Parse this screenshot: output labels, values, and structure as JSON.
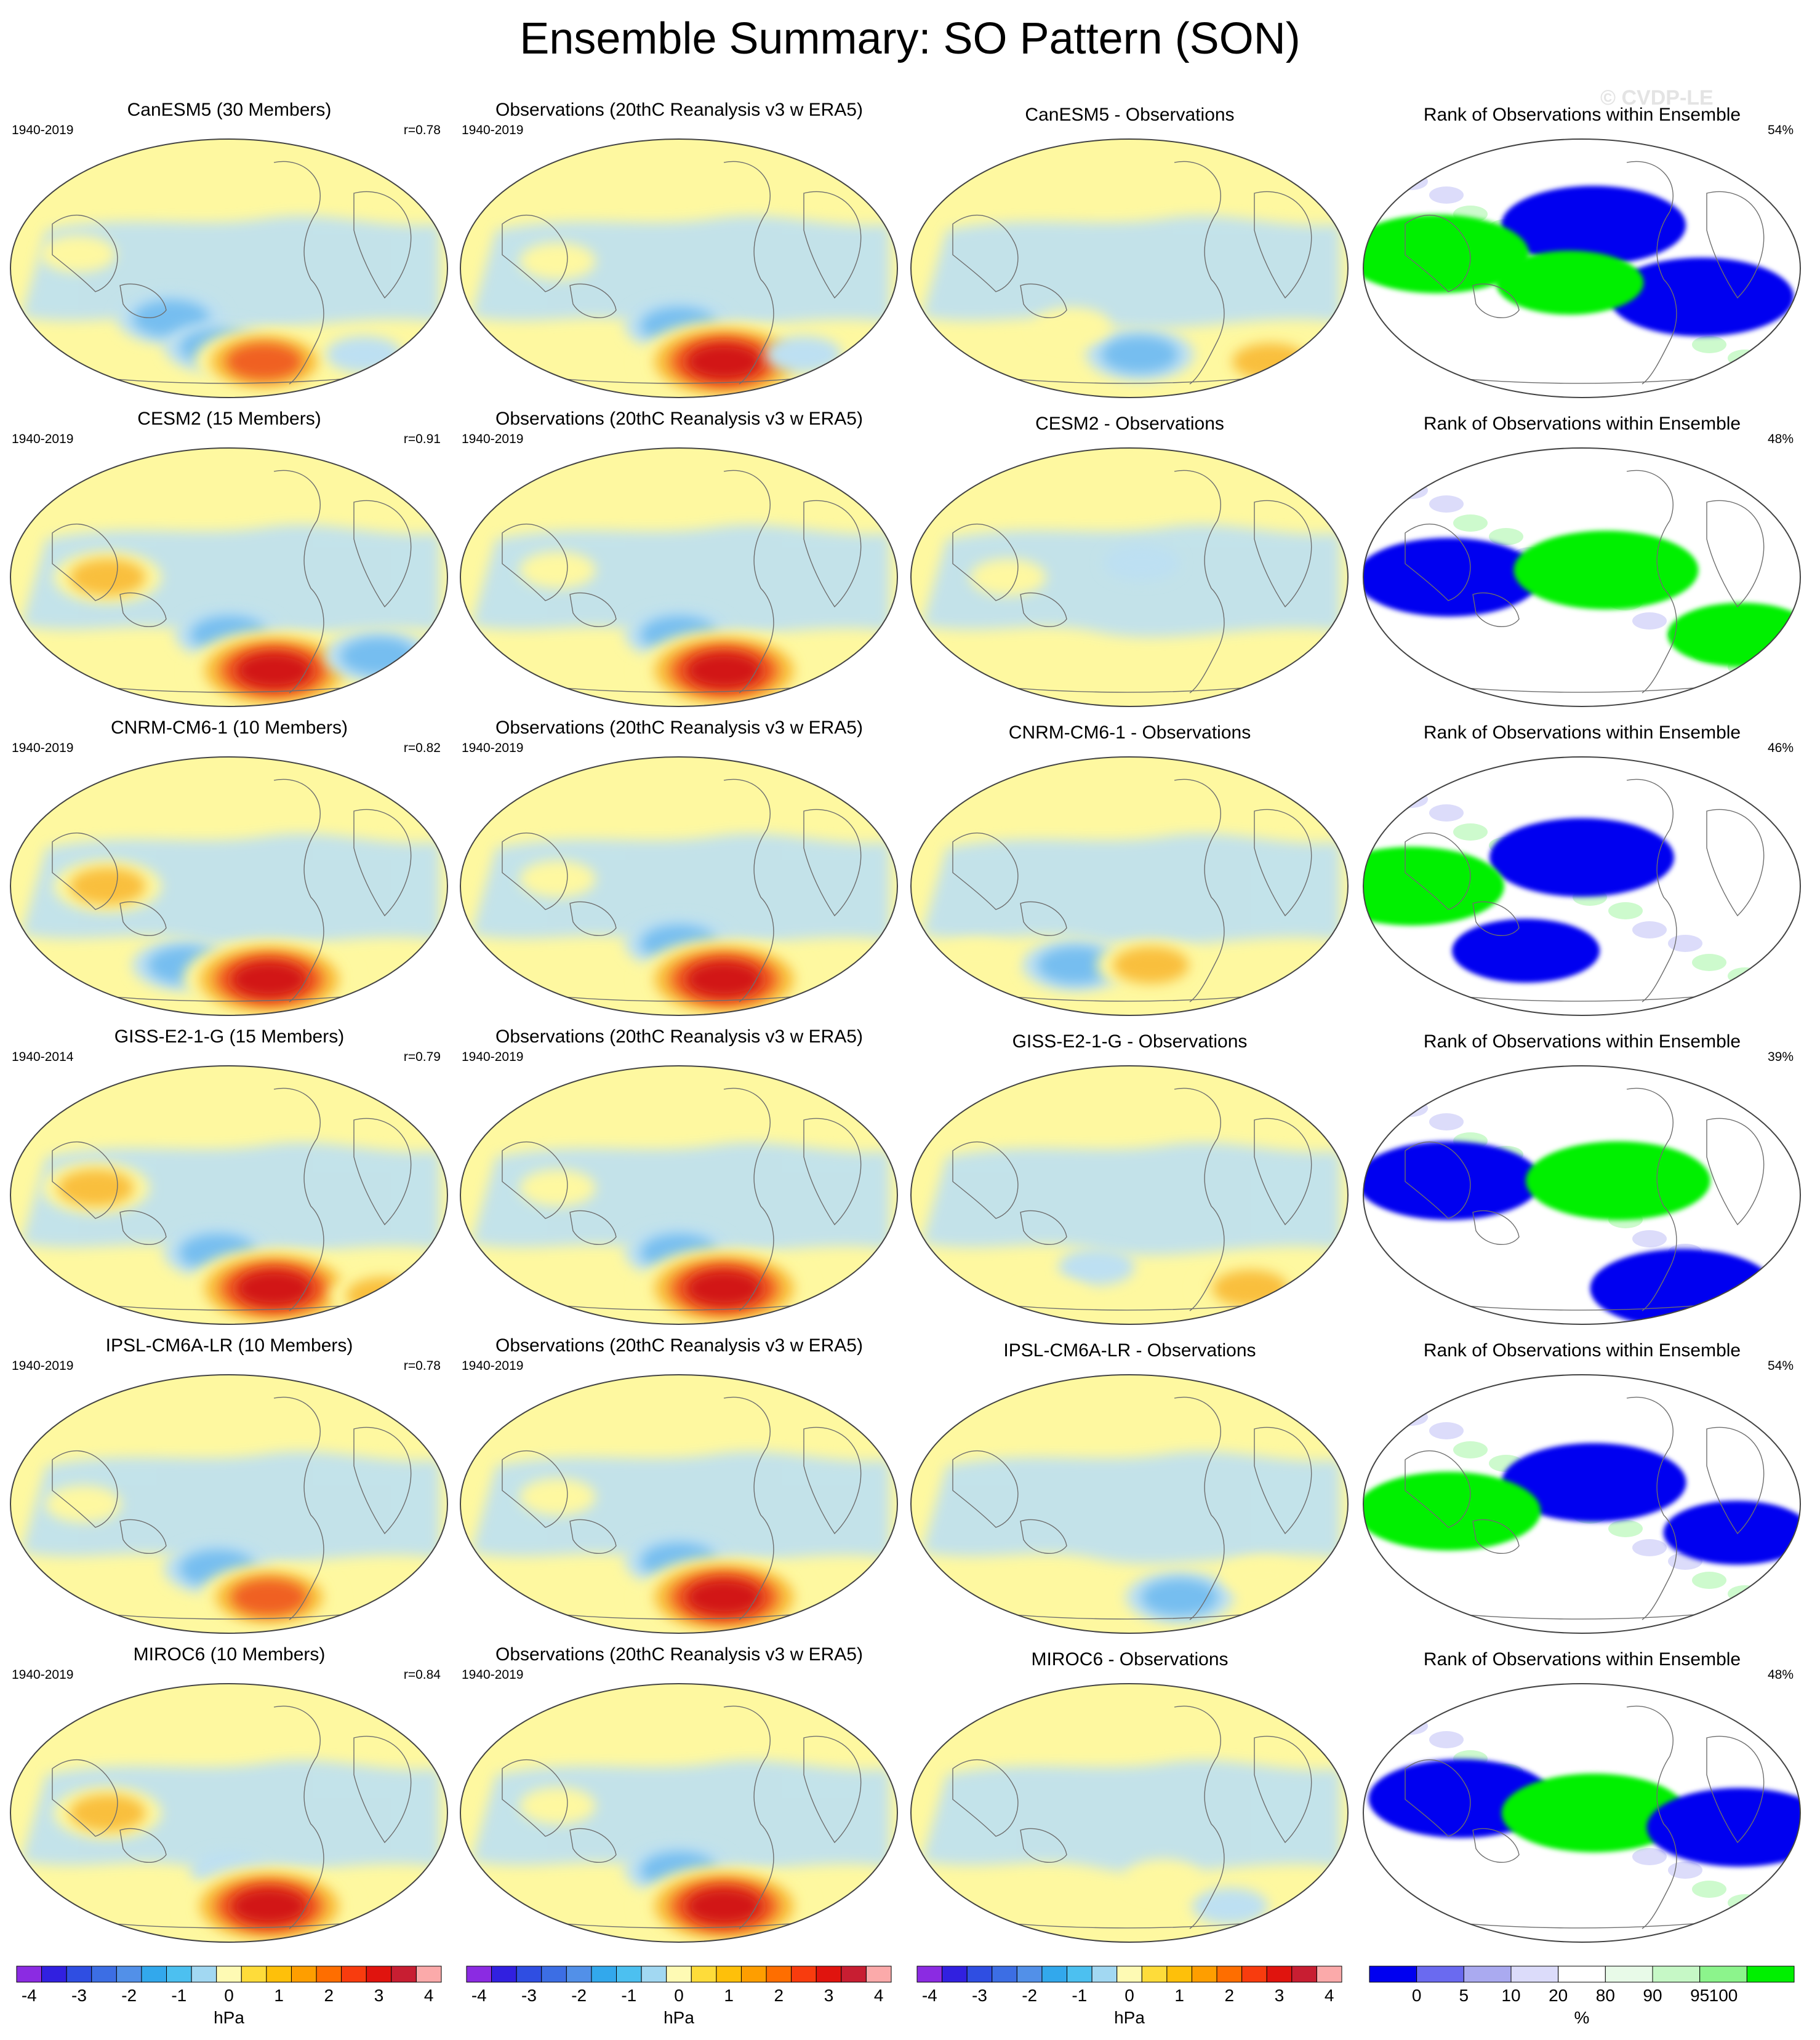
{
  "title": "Ensemble Summary: SO Pattern (SON)",
  "watermark": "© CVDP-LE",
  "colors": {
    "pos_weak": "#fef8a0",
    "pos_mid": "#f9bf3c",
    "pos_strong": "#f06020",
    "pos_max": "#d21414",
    "neg_weak": "#bde0f2",
    "neg_mid": "#76bef0",
    "neg_strong": "#2496e6",
    "rank_blue": "#0000f0",
    "rank_green": "#00f000",
    "rank_lavender": "#dcdcfa",
    "rank_mint": "#cdfacd"
  },
  "colorbars": {
    "hpa": {
      "colors": [
        "#8b2be2",
        "#3120e0",
        "#2f4ee2",
        "#3c6ee4",
        "#5290e8",
        "#32a8ec",
        "#4cc0f0",
        "#a2d8f2",
        "#fefab4",
        "#fedc3a",
        "#fec00a",
        "#fe9e00",
        "#fe6e00",
        "#f83c0e",
        "#e0140e",
        "#c81e32",
        "#fbaaaa"
      ],
      "ticks": [
        "-4",
        "-3",
        "-2",
        "-1",
        "0",
        "1",
        "2",
        "3",
        "4"
      ],
      "unit": "hPa"
    },
    "rank": {
      "colors": [
        "#0000f0",
        "#6a6af0",
        "#aaaaf0",
        "#dcdcfa",
        "#ffffff",
        "#e8fae8",
        "#c6f8c6",
        "#8cf48c",
        "#00f000"
      ],
      "ticks": [
        "0",
        "5",
        "10",
        "20",
        "80",
        "90",
        "95",
        "100"
      ],
      "unit": "%"
    }
  },
  "chart_data": [
    {
      "type": "heatmap",
      "row": "CanESM5",
      "title": "CanESM5 (30 Members)",
      "period": "1940-2019",
      "correlation": "r=0.78",
      "units": "hPa",
      "features": [
        {
          "kind": "neg",
          "lon": 150,
          "lat": -35,
          "strength": 2
        },
        {
          "kind": "neg",
          "lon": -170,
          "lat": -55,
          "strength": 2
        },
        {
          "kind": "pos",
          "lon": -125,
          "lat": -65,
          "strength": 3
        },
        {
          "kind": "pos",
          "lon": 75,
          "lat": 10,
          "strength": 1
        },
        {
          "kind": "neg",
          "lon": -30,
          "lat": -60,
          "strength": 1
        }
      ]
    },
    {
      "type": "heatmap",
      "row": "CanESM5",
      "title": "Observations (20thC Reanalysis v3 w ERA5)",
      "period": "1940-2019",
      "units": "hPa",
      "features": [
        {
          "kind": "neg",
          "lon": -160,
          "lat": -40,
          "strength": 2
        },
        {
          "kind": "pos",
          "lon": -115,
          "lat": -65,
          "strength": 4
        },
        {
          "kind": "pos",
          "lon": 100,
          "lat": 5,
          "strength": 1
        },
        {
          "kind": "neg",
          "lon": -40,
          "lat": -60,
          "strength": 1
        }
      ]
    },
    {
      "type": "heatmap",
      "row": "CanESM5",
      "title": "CanESM5 - Observations",
      "units": "hPa",
      "features": [
        {
          "kind": "neg",
          "lon": -150,
          "lat": -60,
          "strength": 2
        },
        {
          "kind": "pos",
          "lon": -20,
          "lat": -65,
          "strength": 2
        },
        {
          "kind": "pos",
          "lon": 150,
          "lat": -40,
          "strength": 1
        }
      ]
    },
    {
      "type": "heatmap",
      "row": "CanESM5",
      "title": "Rank of Observations within Ensemble",
      "rank_pct": "54%",
      "units": "%",
      "features": [
        {
          "kind": "blue",
          "lon": -150,
          "lat": 30,
          "strength": 3
        },
        {
          "kind": "green",
          "lon": 80,
          "lat": 10,
          "strength": 3
        },
        {
          "kind": "blue",
          "lon": -60,
          "lat": -20,
          "strength": 3
        },
        {
          "kind": "green",
          "lon": -170,
          "lat": -10,
          "strength": 2
        }
      ]
    },
    {
      "type": "heatmap",
      "row": "CESM2",
      "title": "CESM2 (15 Members)",
      "period": "1940-2019",
      "correlation": "r=0.91",
      "units": "hPa",
      "features": [
        {
          "kind": "pos",
          "lon": 100,
          "lat": 0,
          "strength": 2
        },
        {
          "kind": "neg",
          "lon": -160,
          "lat": -40,
          "strength": 2
        },
        {
          "kind": "pos",
          "lon": -115,
          "lat": -65,
          "strength": 4
        },
        {
          "kind": "neg",
          "lon": -20,
          "lat": -55,
          "strength": 2
        }
      ]
    },
    {
      "type": "heatmap",
      "row": "CESM2",
      "title": "Observations (20thC Reanalysis v3 w ERA5)",
      "period": "1940-2019",
      "units": "hPa",
      "features": [
        {
          "kind": "neg",
          "lon": -160,
          "lat": -40,
          "strength": 2
        },
        {
          "kind": "pos",
          "lon": -115,
          "lat": -65,
          "strength": 4
        },
        {
          "kind": "pos",
          "lon": 100,
          "lat": 5,
          "strength": 1
        }
      ]
    },
    {
      "type": "heatmap",
      "row": "CESM2",
      "title": "CESM2 - Observations",
      "units": "hPa",
      "features": [
        {
          "kind": "neg",
          "lon": -150,
          "lat": 10,
          "strength": 1
        },
        {
          "kind": "pos",
          "lon": 100,
          "lat": 0,
          "strength": 1
        }
      ]
    },
    {
      "type": "heatmap",
      "row": "CESM2",
      "title": "Rank of Observations within Ensemble",
      "rank_pct": "48%",
      "units": "%",
      "features": [
        {
          "kind": "blue",
          "lon": 90,
          "lat": 0,
          "strength": 3
        },
        {
          "kind": "green",
          "lon": -140,
          "lat": 5,
          "strength": 3
        },
        {
          "kind": "green",
          "lon": -20,
          "lat": -40,
          "strength": 2
        }
      ]
    },
    {
      "type": "heatmap",
      "row": "CNRM-CM6-1",
      "title": "CNRM-CM6-1 (10 Members)",
      "period": "1940-2019",
      "correlation": "r=0.82",
      "units": "hPa",
      "features": [
        {
          "kind": "pos",
          "lon": 100,
          "lat": 0,
          "strength": 2
        },
        {
          "kind": "neg",
          "lon": 160,
          "lat": -55,
          "strength": 2
        },
        {
          "kind": "pos",
          "lon": -120,
          "lat": -65,
          "strength": 4
        }
      ]
    },
    {
      "type": "heatmap",
      "row": "CNRM-CM6-1",
      "title": "Observations (20thC Reanalysis v3 w ERA5)",
      "period": "1940-2019",
      "units": "hPa",
      "features": [
        {
          "kind": "neg",
          "lon": -160,
          "lat": -40,
          "strength": 2
        },
        {
          "kind": "pos",
          "lon": -115,
          "lat": -65,
          "strength": 4
        },
        {
          "kind": "pos",
          "lon": 100,
          "lat": 5,
          "strength": 1
        }
      ]
    },
    {
      "type": "heatmap",
      "row": "CNRM-CM6-1",
      "title": "CNRM-CM6-1 - Observations",
      "units": "hPa",
      "features": [
        {
          "kind": "neg",
          "lon": 150,
          "lat": -55,
          "strength": 2
        },
        {
          "kind": "pos",
          "lon": -140,
          "lat": -55,
          "strength": 2
        },
        {
          "kind": "pos",
          "lon": 60,
          "lat": -50,
          "strength": 1
        }
      ]
    },
    {
      "type": "heatmap",
      "row": "CNRM-CM6-1",
      "title": "Rank of Observations within Ensemble",
      "rank_pct": "46%",
      "units": "%",
      "features": [
        {
          "kind": "blue",
          "lon": -160,
          "lat": 20,
          "strength": 3
        },
        {
          "kind": "green",
          "lon": 60,
          "lat": 0,
          "strength": 3
        },
        {
          "kind": "blue",
          "lon": 150,
          "lat": -45,
          "strength": 2
        }
      ]
    },
    {
      "type": "heatmap",
      "row": "GISS-E2-1-G",
      "title": "GISS-E2-1-G (15 Members)",
      "period": "1940-2014",
      "correlation": "r=0.79",
      "units": "hPa",
      "features": [
        {
          "kind": "pos",
          "lon": 90,
          "lat": 5,
          "strength": 2
        },
        {
          "kind": "neg",
          "lon": -170,
          "lat": -40,
          "strength": 2
        },
        {
          "kind": "pos",
          "lon": -115,
          "lat": -65,
          "strength": 4
        },
        {
          "kind": "pos",
          "lon": 0,
          "lat": -70,
          "strength": 2
        }
      ]
    },
    {
      "type": "heatmap",
      "row": "GISS-E2-1-G",
      "title": "Observations (20thC Reanalysis v3 w ERA5)",
      "period": "1940-2019",
      "units": "hPa",
      "features": [
        {
          "kind": "neg",
          "lon": -160,
          "lat": -40,
          "strength": 2
        },
        {
          "kind": "pos",
          "lon": -115,
          "lat": -65,
          "strength": 4
        },
        {
          "kind": "pos",
          "lon": 100,
          "lat": 5,
          "strength": 1
        }
      ]
    },
    {
      "type": "heatmap",
      "row": "GISS-E2-1-G",
      "title": "GISS-E2-1-G - Observations",
      "units": "hPa",
      "features": [
        {
          "kind": "neg",
          "lon": 170,
          "lat": -50,
          "strength": 1
        },
        {
          "kind": "pos",
          "lon": -40,
          "lat": -65,
          "strength": 2
        },
        {
          "kind": "pos",
          "lon": 120,
          "lat": -72,
          "strength": 1
        }
      ]
    },
    {
      "type": "heatmap",
      "row": "GISS-E2-1-G",
      "title": "Rank of Observations within Ensemble",
      "rank_pct": "39%",
      "units": "%",
      "features": [
        {
          "kind": "blue",
          "lon": 90,
          "lat": 10,
          "strength": 3
        },
        {
          "kind": "green",
          "lon": -130,
          "lat": 10,
          "strength": 3
        },
        {
          "kind": "blue",
          "lon": -60,
          "lat": -65,
          "strength": 3
        }
      ]
    },
    {
      "type": "heatmap",
      "row": "IPSL-CM6A-LR",
      "title": "IPSL-CM6A-LR (10 Members)",
      "period": "1940-2019",
      "correlation": "r=0.78",
      "units": "hPa",
      "features": [
        {
          "kind": "neg",
          "lon": -170,
          "lat": -45,
          "strength": 2
        },
        {
          "kind": "pos",
          "lon": -120,
          "lat": -65,
          "strength": 3
        },
        {
          "kind": "pos",
          "lon": 80,
          "lat": 0,
          "strength": 1
        }
      ]
    },
    {
      "type": "heatmap",
      "row": "IPSL-CM6A-LR",
      "title": "Observations (20thC Reanalysis v3 w ERA5)",
      "period": "1940-2019",
      "units": "hPa",
      "features": [
        {
          "kind": "neg",
          "lon": -160,
          "lat": -40,
          "strength": 2
        },
        {
          "kind": "pos",
          "lon": -115,
          "lat": -65,
          "strength": 4
        },
        {
          "kind": "pos",
          "lon": 100,
          "lat": 5,
          "strength": 1
        }
      ]
    },
    {
      "type": "heatmap",
      "row": "IPSL-CM6A-LR",
      "title": "IPSL-CM6A-LR - Observations",
      "units": "hPa",
      "features": [
        {
          "kind": "neg",
          "lon": -110,
          "lat": -65,
          "strength": 2
        },
        {
          "kind": "pos",
          "lon": -40,
          "lat": -50,
          "strength": 1
        }
      ]
    },
    {
      "type": "heatmap",
      "row": "IPSL-CM6A-LR",
      "title": "Rank of Observations within Ensemble",
      "rank_pct": "54%",
      "units": "%",
      "features": [
        {
          "kind": "blue",
          "lon": -150,
          "lat": 15,
          "strength": 3
        },
        {
          "kind": "green",
          "lon": 90,
          "lat": -5,
          "strength": 3
        },
        {
          "kind": "blue",
          "lon": -30,
          "lat": -20,
          "strength": 2
        }
      ]
    },
    {
      "type": "heatmap",
      "row": "MIROC6",
      "title": "MIROC6 (10 Members)",
      "period": "1940-2019",
      "correlation": "r=0.84",
      "units": "hPa",
      "features": [
        {
          "kind": "pos",
          "lon": 100,
          "lat": 0,
          "strength": 2
        },
        {
          "kind": "neg",
          "lon": -160,
          "lat": -40,
          "strength": 1
        },
        {
          "kind": "pos",
          "lon": -120,
          "lat": -65,
          "strength": 4
        }
      ]
    },
    {
      "type": "heatmap",
      "row": "MIROC6",
      "title": "Observations (20thC Reanalysis v3 w ERA5)",
      "period": "1940-2019",
      "units": "hPa",
      "features": [
        {
          "kind": "neg",
          "lon": -160,
          "lat": -40,
          "strength": 2
        },
        {
          "kind": "pos",
          "lon": -115,
          "lat": -65,
          "strength": 4
        },
        {
          "kind": "pos",
          "lon": 100,
          "lat": 5,
          "strength": 1
        }
      ]
    },
    {
      "type": "heatmap",
      "row": "MIROC6",
      "title": "MIROC6 - Observations",
      "units": "hPa",
      "features": [
        {
          "kind": "neg",
          "lon": -60,
          "lat": -65,
          "strength": 1
        },
        {
          "kind": "pos",
          "lon": -130,
          "lat": -45,
          "strength": 1
        }
      ]
    },
    {
      "type": "heatmap",
      "row": "MIROC6",
      "title": "Rank of Observations within Ensemble",
      "rank_pct": "48%",
      "units": "%",
      "features": [
        {
          "kind": "blue",
          "lon": 100,
          "lat": 10,
          "strength": 3
        },
        {
          "kind": "green",
          "lon": -150,
          "lat": 0,
          "strength": 3
        },
        {
          "kind": "blue",
          "lon": -30,
          "lat": -10,
          "strength": 3
        }
      ]
    }
  ]
}
